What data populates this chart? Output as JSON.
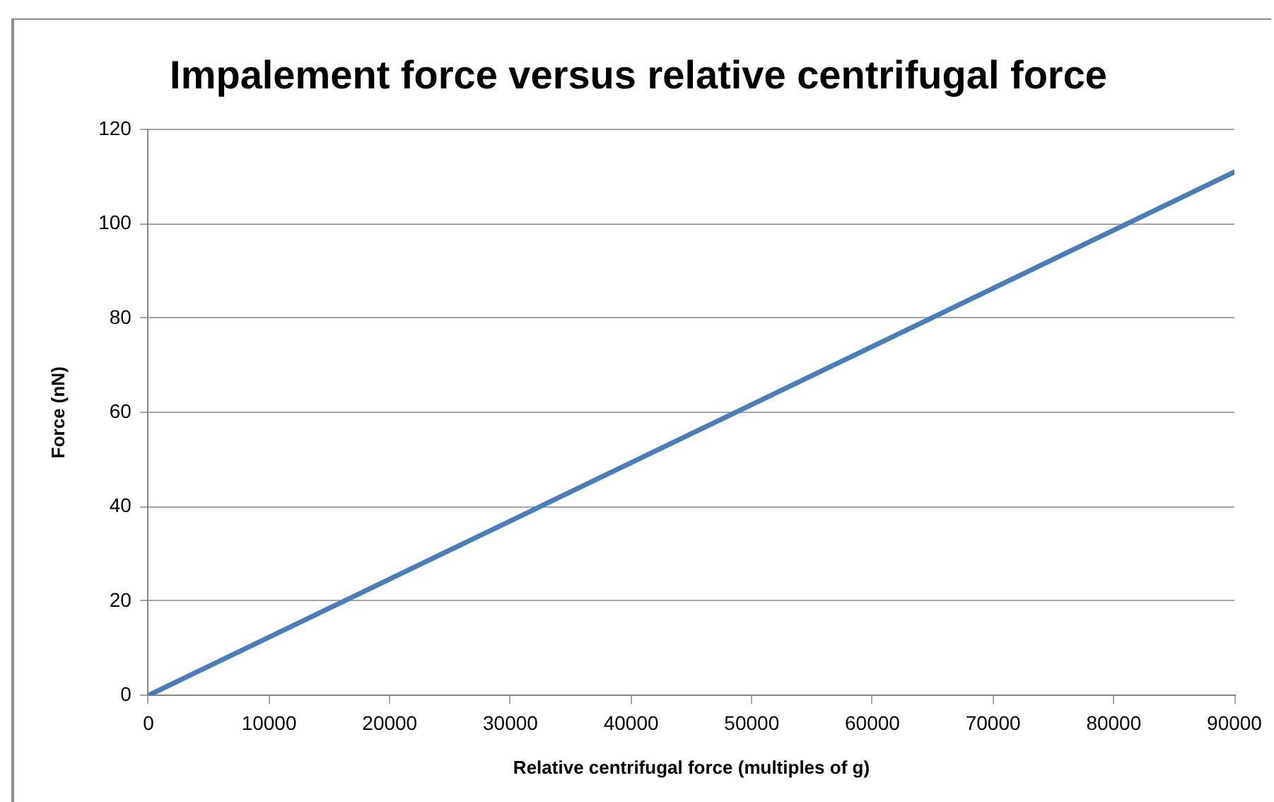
{
  "chart_data": {
    "type": "line",
    "title": "Impalement force versus relative centrifugal force",
    "xlabel": "Relative centrifugal force (multiples of g)",
    "ylabel": "Force (nN)",
    "x": [
      0,
      90000
    ],
    "series": [
      {
        "color": "#4a7ebb",
        "values": [
          0,
          111
        ]
      }
    ],
    "xlim": [
      0,
      90000
    ],
    "xticks": [
      0,
      10000,
      20000,
      30000,
      40000,
      50000,
      60000,
      70000,
      80000,
      90000
    ],
    "ylim": [
      0,
      120
    ],
    "yticks": [
      0,
      20,
      40,
      60,
      80,
      100,
      120
    ],
    "grid": "y",
    "legend": false,
    "marker": "none",
    "line_style": "solid"
  }
}
